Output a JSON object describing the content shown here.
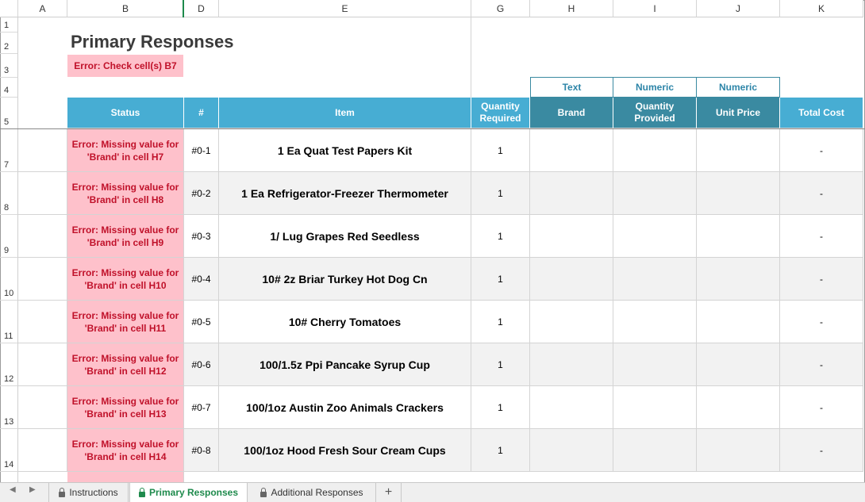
{
  "columns": [
    "A",
    "B",
    "D",
    "E",
    "G",
    "H",
    "I",
    "J",
    "K"
  ],
  "row_numbers": [
    "1",
    "2",
    "3",
    "4",
    "5",
    "7",
    "8",
    "9",
    "10",
    "11",
    "12",
    "13",
    "14"
  ],
  "title": "Primary Responses",
  "error_banner": "Error: Check cell(s) B7",
  "type_labels": {
    "h": "Text",
    "i": "Numeric",
    "j": "Numeric"
  },
  "headers": {
    "status": "Status",
    "num": "#",
    "item": "Item",
    "qty_required": "Quantity Required",
    "brand": "Brand",
    "qty_provided": "Quantity Provided",
    "unit_price": "Unit Price",
    "total_cost": "Total Cost"
  },
  "rows": [
    {
      "status": "Error: Missing value for 'Brand' in cell H7",
      "num": "#0-1",
      "item": "1 Ea Quat Test Papers Kit",
      "qty": "1",
      "total": "-"
    },
    {
      "status": "Error: Missing value for 'Brand' in cell H8",
      "num": "#0-2",
      "item": "1 Ea Refrigerator-Freezer Thermometer",
      "qty": "1",
      "total": "-"
    },
    {
      "status": "Error: Missing value for 'Brand' in cell H9",
      "num": "#0-3",
      "item": "1/ Lug Grapes Red Seedless",
      "qty": "1",
      "total": "-"
    },
    {
      "status": "Error: Missing value for 'Brand' in cell H10",
      "num": "#0-4",
      "item": "10# 2z Briar Turkey Hot Dog Cn",
      "qty": "1",
      "total": "-"
    },
    {
      "status": "Error: Missing value for 'Brand' in cell H11",
      "num": "#0-5",
      "item": "10# Cherry Tomatoes",
      "qty": "1",
      "total": "-"
    },
    {
      "status": "Error: Missing value for 'Brand' in cell H12",
      "num": "#0-6",
      "item": "100/1.5z Ppi Pancake Syrup Cup",
      "qty": "1",
      "total": "-"
    },
    {
      "status": "Error: Missing value for 'Brand' in cell H13",
      "num": "#0-7",
      "item": "100/1oz Austin Zoo Animals Crackers",
      "qty": "1",
      "total": "-"
    },
    {
      "status": "Error: Missing value for 'Brand' in cell H14",
      "num": "#0-8",
      "item": "100/1oz Hood Fresh Sour Cream Cups",
      "qty": "1",
      "total": "-"
    }
  ],
  "tabs": [
    "Instructions",
    "Primary Responses",
    "Additional Responses"
  ],
  "tab_add": "+",
  "nav": {
    "prev": "◀",
    "next": "▶"
  }
}
